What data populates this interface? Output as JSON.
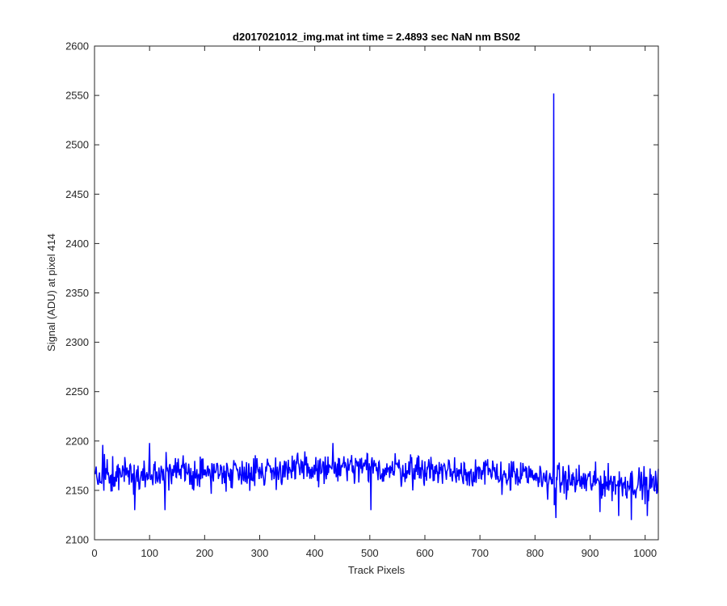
{
  "chart_data": {
    "type": "line",
    "title": "d2017021012_img.mat int time = 2.4893 sec  NaN nm BS02",
    "xlabel": "Track Pixels",
    "ylabel": "Signal (ADU) at pixel 414",
    "xlim": [
      0,
      1024
    ],
    "ylim": [
      2100,
      2600
    ],
    "xticks": [
      0,
      100,
      200,
      300,
      400,
      500,
      600,
      700,
      800,
      900,
      1000
    ],
    "yticks": [
      2100,
      2150,
      2200,
      2250,
      2300,
      2350,
      2400,
      2450,
      2500,
      2550,
      2600
    ],
    "grid": false,
    "line_color": "#0000ff",
    "series": [
      {
        "x_range": [
          1,
          1024
        ],
        "baseline": [
          [
            0,
            2165
          ],
          [
            200,
            2168
          ],
          [
            300,
            2170
          ],
          [
            450,
            2172
          ],
          [
            600,
            2171
          ],
          [
            700,
            2168
          ],
          [
            800,
            2163
          ],
          [
            850,
            2160
          ],
          [
            1024,
            2156
          ]
        ],
        "noise_amplitude": 12,
        "spike": {
          "x": 834,
          "y": 2552
        },
        "notable_points": [
          [
            15,
            2196
          ],
          [
            73,
            2130
          ],
          [
            100,
            2198
          ],
          [
            128,
            2130
          ],
          [
            433,
            2198
          ],
          [
            502,
            2130
          ],
          [
            838,
            2122
          ],
          [
            918,
            2128
          ],
          [
            952,
            2124
          ],
          [
            975,
            2120
          ],
          [
            1004,
            2124
          ],
          [
            1022,
            2148
          ]
        ]
      }
    ]
  }
}
